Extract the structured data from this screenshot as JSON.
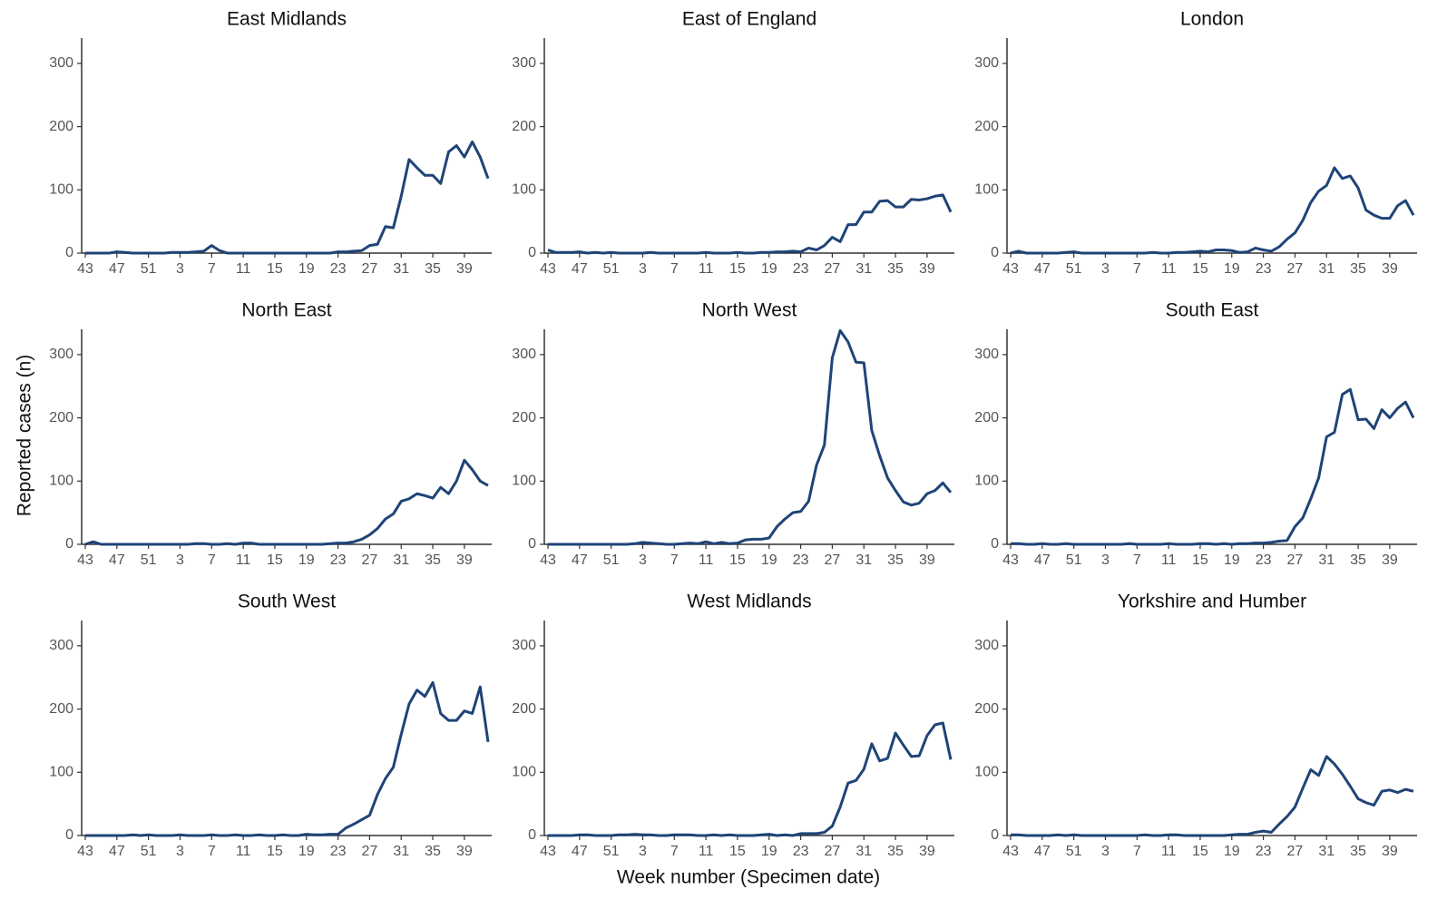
{
  "y_label": "Reported cases (n)",
  "x_label": "Week number (Specimen date)",
  "chart_data": [
    {
      "type": "line",
      "title": "East Midlands",
      "color": "#1f4477",
      "categories": [
        43,
        null,
        null,
        null,
        47,
        null,
        null,
        null,
        51,
        null,
        null,
        null,
        3,
        null,
        null,
        null,
        7,
        null,
        null,
        null,
        11,
        null,
        null,
        null,
        15,
        null,
        null,
        null,
        19,
        null,
        null,
        null,
        23,
        null,
        null,
        null,
        27,
        null,
        null,
        null,
        31,
        null,
        null,
        null,
        35,
        null,
        null,
        null,
        39,
        null,
        null,
        null
      ],
      "ylim": [
        0,
        340
      ],
      "yticks": [
        0,
        100,
        200,
        300
      ],
      "values": [
        0,
        0,
        0,
        0,
        2,
        1,
        0,
        0,
        0,
        0,
        0,
        1,
        1,
        1,
        2,
        3,
        12,
        4,
        0,
        0,
        0,
        0,
        0,
        0,
        0,
        0,
        0,
        0,
        0,
        0,
        0,
        0,
        2,
        2,
        3,
        4,
        12,
        14,
        42,
        40,
        90,
        148,
        135,
        123,
        123,
        110,
        160,
        170,
        152,
        176,
        152,
        118
      ]
    },
    {
      "type": "line",
      "title": "East of England",
      "color": "#1f4477",
      "categories": [
        43,
        null,
        null,
        null,
        47,
        null,
        null,
        null,
        51,
        null,
        null,
        null,
        3,
        null,
        null,
        null,
        7,
        null,
        null,
        null,
        11,
        null,
        null,
        null,
        15,
        null,
        null,
        null,
        19,
        null,
        null,
        null,
        23,
        null,
        null,
        null,
        27,
        null,
        null,
        null,
        31,
        null,
        null,
        null,
        35,
        null,
        null,
        null,
        39,
        null,
        null,
        null
      ],
      "ylim": [
        0,
        340
      ],
      "yticks": [
        0,
        100,
        200,
        300
      ],
      "values": [
        5,
        1,
        1,
        1,
        2,
        0,
        1,
        0,
        1,
        0,
        0,
        0,
        0,
        1,
        0,
        0,
        0,
        0,
        0,
        0,
        1,
        0,
        0,
        0,
        1,
        0,
        0,
        1,
        1,
        2,
        2,
        3,
        2,
        8,
        5,
        12,
        25,
        18,
        45,
        45,
        65,
        65,
        82,
        83,
        73,
        73,
        85,
        84,
        86,
        90,
        92,
        65
      ]
    },
    {
      "type": "line",
      "title": "London",
      "color": "#1f4477",
      "categories": [
        43,
        null,
        null,
        null,
        47,
        null,
        null,
        null,
        51,
        null,
        null,
        null,
        3,
        null,
        null,
        null,
        7,
        null,
        null,
        null,
        11,
        null,
        null,
        null,
        15,
        null,
        null,
        null,
        19,
        null,
        null,
        null,
        23,
        null,
        null,
        null,
        27,
        null,
        null,
        null,
        31,
        null,
        null,
        null,
        35,
        null,
        null,
        null,
        39,
        null,
        null,
        null
      ],
      "ylim": [
        0,
        340
      ],
      "yticks": [
        0,
        100,
        200,
        300
      ],
      "values": [
        0,
        3,
        0,
        0,
        0,
        0,
        0,
        1,
        2,
        0,
        0,
        0,
        0,
        0,
        0,
        0,
        0,
        0,
        1,
        0,
        0,
        1,
        1,
        2,
        3,
        2,
        5,
        5,
        4,
        1,
        2,
        8,
        5,
        3,
        10,
        22,
        32,
        52,
        80,
        98,
        107,
        135,
        118,
        122,
        103,
        68,
        60,
        55,
        55,
        75,
        83,
        60
      ]
    },
    {
      "type": "line",
      "title": "North East",
      "color": "#1f4477",
      "categories": [
        43,
        null,
        null,
        null,
        47,
        null,
        null,
        null,
        51,
        null,
        null,
        null,
        3,
        null,
        null,
        null,
        7,
        null,
        null,
        null,
        11,
        null,
        null,
        null,
        15,
        null,
        null,
        null,
        19,
        null,
        null,
        null,
        23,
        null,
        null,
        null,
        27,
        null,
        null,
        null,
        31,
        null,
        null,
        null,
        35,
        null,
        null,
        null,
        39,
        null,
        null,
        null
      ],
      "ylim": [
        0,
        340
      ],
      "yticks": [
        0,
        100,
        200,
        300
      ],
      "values": [
        0,
        4,
        0,
        0,
        0,
        0,
        0,
        0,
        0,
        0,
        0,
        0,
        0,
        0,
        1,
        1,
        0,
        0,
        1,
        0,
        2,
        2,
        0,
        0,
        0,
        0,
        0,
        0,
        0,
        0,
        0,
        1,
        2,
        2,
        4,
        8,
        15,
        25,
        40,
        48,
        68,
        72,
        80,
        77,
        73,
        90,
        80,
        100,
        133,
        118,
        100,
        93
      ]
    },
    {
      "type": "line",
      "title": "North West",
      "color": "#1f4477",
      "categories": [
        43,
        null,
        null,
        null,
        47,
        null,
        null,
        null,
        51,
        null,
        null,
        null,
        3,
        null,
        null,
        null,
        7,
        null,
        null,
        null,
        11,
        null,
        null,
        null,
        15,
        null,
        null,
        null,
        19,
        null,
        null,
        null,
        23,
        null,
        null,
        null,
        27,
        null,
        null,
        null,
        31,
        null,
        null,
        null,
        35,
        null,
        null,
        null,
        39,
        null,
        null,
        null
      ],
      "ylim": [
        0,
        340
      ],
      "yticks": [
        0,
        100,
        200,
        300
      ],
      "values": [
        0,
        0,
        0,
        0,
        0,
        0,
        0,
        0,
        0,
        0,
        0,
        1,
        3,
        2,
        1,
        0,
        0,
        1,
        2,
        1,
        4,
        1,
        3,
        1,
        2,
        7,
        8,
        8,
        10,
        28,
        40,
        50,
        52,
        68,
        125,
        157,
        295,
        338,
        320,
        288,
        287,
        180,
        140,
        105,
        85,
        67,
        62,
        65,
        80,
        85,
        97,
        82
      ]
    },
    {
      "type": "line",
      "title": "South East",
      "color": "#1f4477",
      "categories": [
        43,
        null,
        null,
        null,
        47,
        null,
        null,
        null,
        51,
        null,
        null,
        null,
        3,
        null,
        null,
        null,
        7,
        null,
        null,
        null,
        11,
        null,
        null,
        null,
        15,
        null,
        null,
        null,
        19,
        null,
        null,
        null,
        23,
        null,
        null,
        null,
        27,
        null,
        null,
        null,
        31,
        null,
        null,
        null,
        35,
        null,
        null,
        null,
        39,
        null,
        null,
        null
      ],
      "ylim": [
        0,
        340
      ],
      "yticks": [
        0,
        100,
        200,
        300
      ],
      "values": [
        1,
        1,
        0,
        0,
        1,
        0,
        0,
        1,
        0,
        0,
        0,
        0,
        0,
        0,
        0,
        1,
        0,
        0,
        0,
        0,
        1,
        0,
        0,
        0,
        1,
        1,
        0,
        1,
        0,
        1,
        1,
        2,
        2,
        3,
        5,
        6,
        28,
        42,
        72,
        105,
        170,
        177,
        237,
        245,
        197,
        198,
        183,
        213,
        200,
        215,
        225,
        200
      ]
    },
    {
      "type": "line",
      "title": "South West",
      "color": "#1f4477",
      "categories": [
        43,
        null,
        null,
        null,
        47,
        null,
        null,
        null,
        51,
        null,
        null,
        null,
        3,
        null,
        null,
        null,
        7,
        null,
        null,
        null,
        11,
        null,
        null,
        null,
        15,
        null,
        null,
        null,
        19,
        null,
        null,
        null,
        23,
        null,
        null,
        null,
        27,
        null,
        null,
        null,
        31,
        null,
        null,
        null,
        35,
        null,
        null,
        null,
        39,
        null,
        null,
        null
      ],
      "ylim": [
        0,
        340
      ],
      "yticks": [
        0,
        100,
        200,
        300
      ],
      "values": [
        0,
        0,
        0,
        0,
        0,
        0,
        1,
        0,
        1,
        0,
        0,
        0,
        1,
        0,
        0,
        0,
        1,
        0,
        0,
        1,
        0,
        0,
        1,
        0,
        0,
        1,
        0,
        0,
        2,
        1,
        1,
        2,
        2,
        12,
        18,
        25,
        32,
        65,
        90,
        108,
        160,
        208,
        230,
        220,
        242,
        193,
        182,
        182,
        197,
        193,
        235,
        148
      ]
    },
    {
      "type": "line",
      "title": "West Midlands",
      "color": "#1f4477",
      "categories": [
        43,
        null,
        null,
        null,
        47,
        null,
        null,
        null,
        51,
        null,
        null,
        null,
        3,
        null,
        null,
        null,
        7,
        null,
        null,
        null,
        11,
        null,
        null,
        null,
        15,
        null,
        null,
        null,
        19,
        null,
        null,
        null,
        23,
        null,
        null,
        null,
        27,
        null,
        null,
        null,
        31,
        null,
        null,
        null,
        35,
        null,
        null,
        null,
        39,
        null,
        null,
        null
      ],
      "ylim": [
        0,
        340
      ],
      "yticks": [
        0,
        100,
        200,
        300
      ],
      "values": [
        0,
        0,
        0,
        0,
        1,
        1,
        0,
        0,
        0,
        1,
        1,
        2,
        1,
        1,
        0,
        0,
        1,
        1,
        1,
        0,
        0,
        1,
        0,
        1,
        0,
        0,
        0,
        1,
        2,
        0,
        1,
        0,
        3,
        3,
        3,
        5,
        15,
        45,
        83,
        87,
        105,
        145,
        118,
        122,
        162,
        143,
        125,
        126,
        158,
        175,
        178,
        120
      ]
    },
    {
      "type": "line",
      "title": "Yorkshire and Humber",
      "color": "#1f4477",
      "categories": [
        43,
        null,
        null,
        null,
        47,
        null,
        null,
        null,
        51,
        null,
        null,
        null,
        3,
        null,
        null,
        null,
        7,
        null,
        null,
        null,
        11,
        null,
        null,
        null,
        15,
        null,
        null,
        null,
        19,
        null,
        null,
        null,
        23,
        null,
        null,
        null,
        27,
        null,
        null,
        null,
        31,
        null,
        null,
        null,
        35,
        null,
        null,
        null,
        39,
        null,
        null,
        null
      ],
      "ylim": [
        0,
        340
      ],
      "yticks": [
        0,
        100,
        200,
        300
      ],
      "values": [
        1,
        1,
        0,
        0,
        0,
        0,
        1,
        0,
        1,
        0,
        0,
        0,
        0,
        0,
        0,
        0,
        0,
        1,
        0,
        0,
        1,
        1,
        0,
        0,
        0,
        0,
        0,
        0,
        1,
        2,
        2,
        5,
        7,
        5,
        18,
        30,
        45,
        75,
        104,
        95,
        125,
        113,
        97,
        78,
        58,
        52,
        48,
        70,
        72,
        68,
        73,
        70
      ]
    }
  ]
}
